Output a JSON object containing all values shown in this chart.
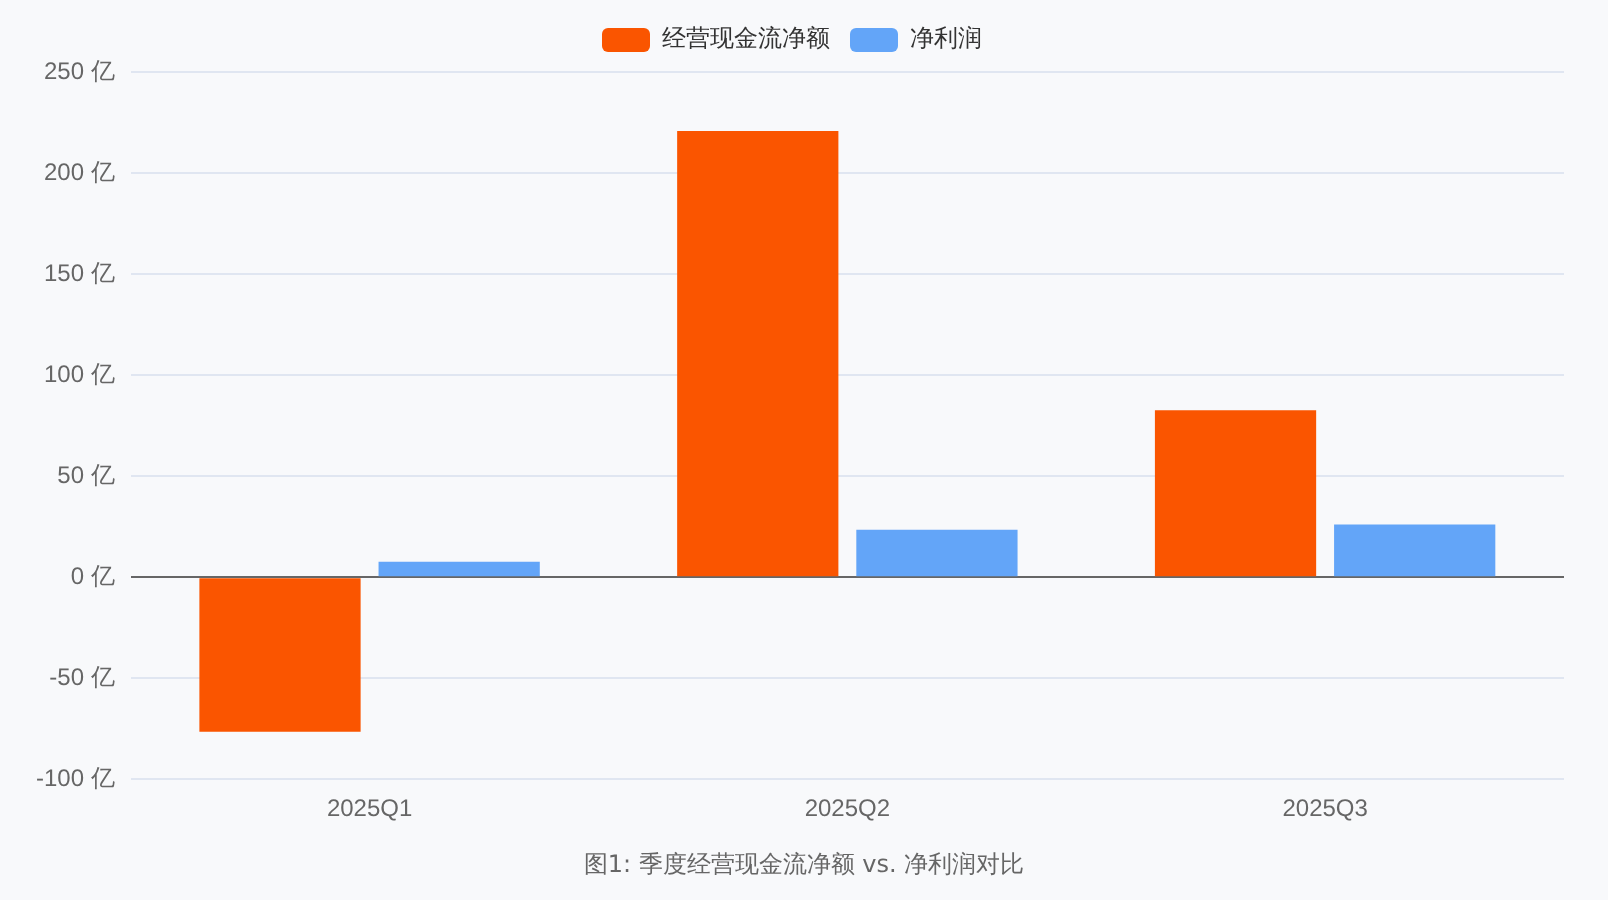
{
  "chart_data": {
    "type": "bar",
    "categories": [
      "2025Q1",
      "2025Q2",
      "2025Q3"
    ],
    "series": [
      {
        "name": "经营现金流净额",
        "color": "#fa5500",
        "values": [
          -76.5,
          220.8,
          82.6
        ]
      },
      {
        "name": "净利润",
        "color": "#63a5f8",
        "values": [
          7.6,
          23.5,
          26.1
        ]
      }
    ],
    "ylim": [
      -100,
      250
    ],
    "yticks": [
      {
        "value": -100,
        "label": "-100 亿"
      },
      {
        "value": -50,
        "label": "-50 亿"
      },
      {
        "value": 0,
        "label": "0 亿"
      },
      {
        "value": 50,
        "label": "50 亿"
      },
      {
        "value": 100,
        "label": "100 亿"
      },
      {
        "value": 150,
        "label": "150 亿"
      },
      {
        "value": 200,
        "label": "200 亿"
      },
      {
        "value": 250,
        "label": "250 亿"
      }
    ],
    "grid": "y",
    "legend": "top",
    "annotations": [
      "图1: 季度经营现金流净额 vs. 净利润对比"
    ]
  }
}
